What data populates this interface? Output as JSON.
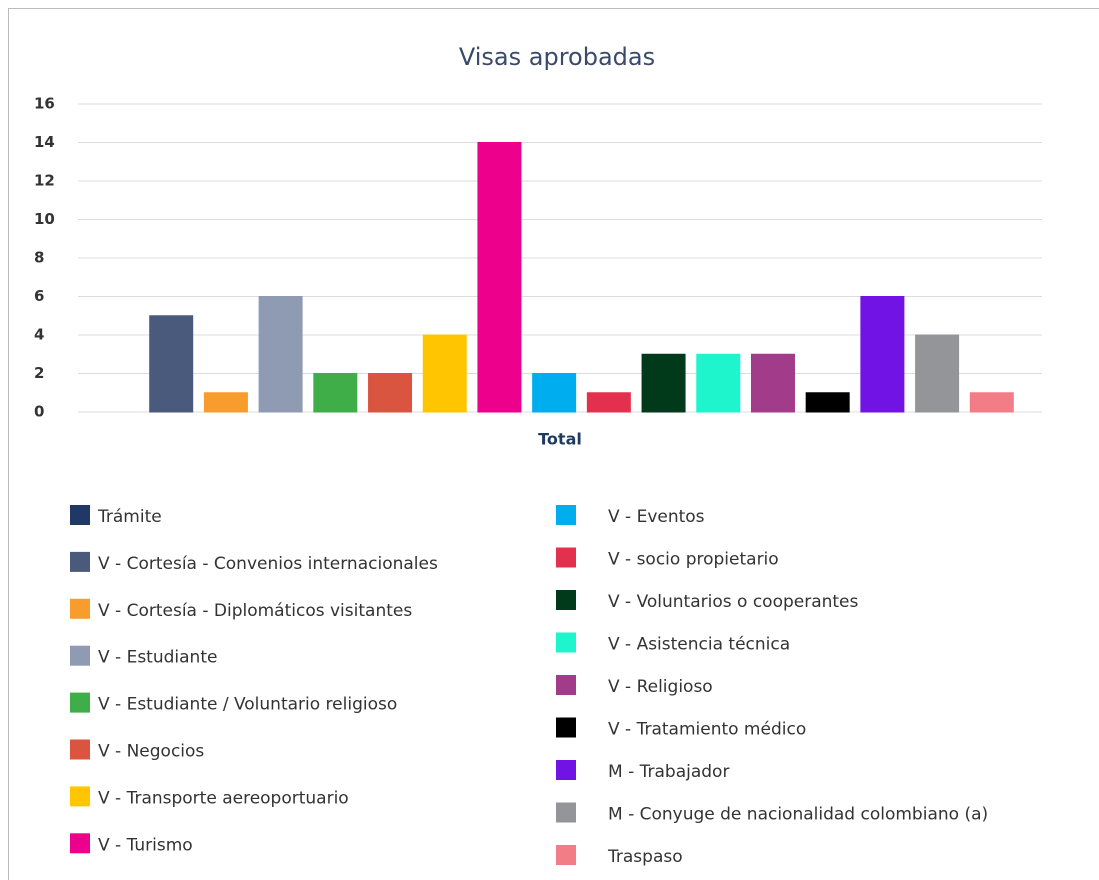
{
  "chart_data": {
    "type": "bar",
    "title": "Visas aprobadas",
    "categories": [
      "Total"
    ],
    "series": [
      {
        "name": "Trámite",
        "color": "#1f3864",
        "values": [
          0
        ]
      },
      {
        "name": "V - Cortesía - Convenios internacionales",
        "color": "#4a5a7c",
        "values": [
          5
        ]
      },
      {
        "name": "V - Cortesía - Diplomáticos visitantes",
        "color": "#f89c2e",
        "values": [
          1
        ]
      },
      {
        "name": "V - Estudiante",
        "color": "#8f9bb3",
        "values": [
          6
        ]
      },
      {
        "name": "V - Estudiante / Voluntario religioso",
        "color": "#3fae49",
        "values": [
          2
        ]
      },
      {
        "name": "V - Negocios",
        "color": "#d9553f",
        "values": [
          2
        ]
      },
      {
        "name": "V - Transporte aereoportuario",
        "color": "#ffc600",
        "values": [
          4
        ]
      },
      {
        "name": "V - Turismo",
        "color": "#ec008c",
        "values": [
          14
        ]
      },
      {
        "name": "V - Eventos",
        "color": "#00adef",
        "values": [
          2
        ]
      },
      {
        "name": "V - socio propietario",
        "color": "#e4304f",
        "values": [
          1
        ]
      },
      {
        "name": "V - Voluntarios o cooperantes",
        "color": "#003a1a",
        "values": [
          3
        ]
      },
      {
        "name": "V - Asistencia técnica",
        "color": "#1ef5cc",
        "values": [
          3
        ]
      },
      {
        "name": "V - Religioso",
        "color": "#a23b8a",
        "values": [
          3
        ]
      },
      {
        "name": "V - Tratamiento médico",
        "color": "#000000",
        "values": [
          1
        ]
      },
      {
        "name": "M - Trabajador",
        "color": "#7213e6",
        "values": [
          6
        ]
      },
      {
        "name": "M - Conyuge de nacionalidad colombiano (a)",
        "color": "#939598",
        "values": [
          4
        ]
      },
      {
        "name": "Traspaso",
        "color": "#f27d86",
        "values": [
          1
        ]
      }
    ],
    "ylim": [
      0,
      16
    ],
    "yticks": [
      0,
      2,
      4,
      6,
      8,
      10,
      12,
      14,
      16
    ],
    "grid": true,
    "legend": "bottom"
  }
}
